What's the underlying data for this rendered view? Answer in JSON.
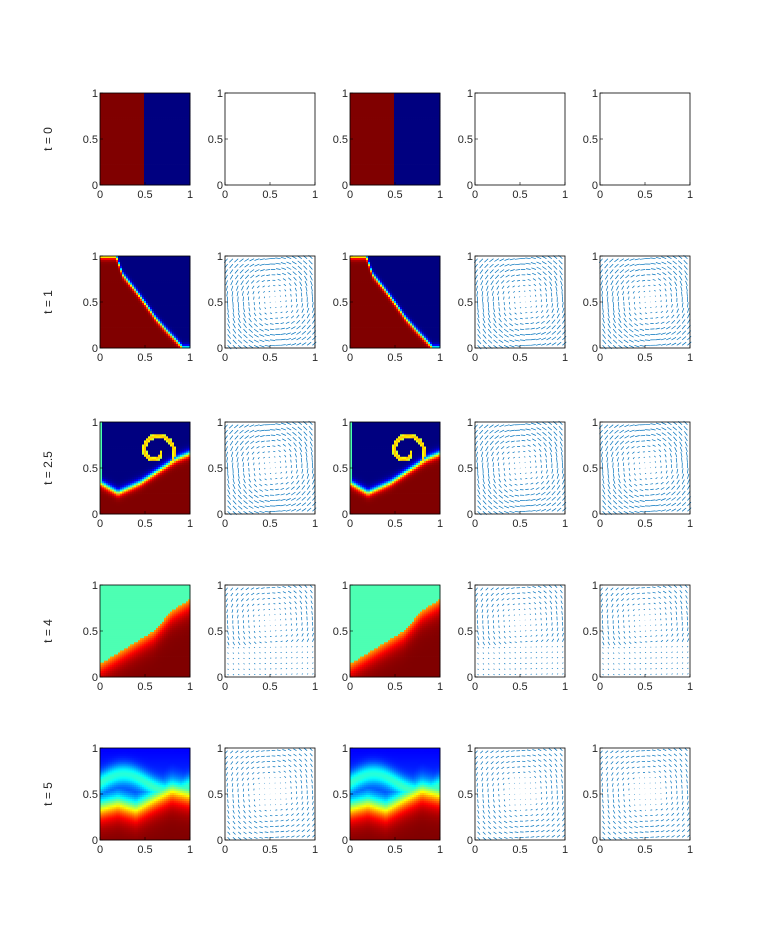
{
  "figure": {
    "rows": [
      "t = 0",
      "t = 1",
      "t = 2.5",
      "t = 4",
      "t = 5"
    ],
    "columns": [
      "scalar-field",
      "velocity-field",
      "scalar-field",
      "velocity-field",
      "velocity-field"
    ]
  },
  "chart_data": {
    "type": "grid-of-subplots",
    "axes": {
      "xlim": [
        0,
        1
      ],
      "ylim": [
        0,
        1
      ],
      "xticks": [
        "0",
        "0.5",
        "1"
      ],
      "yticks": [
        "0",
        "0.5",
        "1"
      ]
    },
    "colormap": "jet",
    "colors": {
      "quiver": "#0072BD",
      "axis": "#262626",
      "frame": "#000000"
    },
    "panels": [
      {
        "row": 0,
        "col": 0,
        "kind": "field",
        "t": 0
      },
      {
        "row": 0,
        "col": 1,
        "kind": "quiver",
        "t": 0,
        "empty": true
      },
      {
        "row": 0,
        "col": 2,
        "kind": "field",
        "t": 0
      },
      {
        "row": 0,
        "col": 3,
        "kind": "quiver",
        "t": 0,
        "empty": true
      },
      {
        "row": 0,
        "col": 4,
        "kind": "quiver",
        "t": 0,
        "empty": true
      },
      {
        "row": 1,
        "col": 0,
        "kind": "field",
        "t": 1
      },
      {
        "row": 1,
        "col": 1,
        "kind": "quiver",
        "t": 1
      },
      {
        "row": 1,
        "col": 2,
        "kind": "field",
        "t": 1
      },
      {
        "row": 1,
        "col": 3,
        "kind": "quiver",
        "t": 1
      },
      {
        "row": 1,
        "col": 4,
        "kind": "quiver",
        "t": 1
      },
      {
        "row": 2,
        "col": 0,
        "kind": "field",
        "t": 2.5
      },
      {
        "row": 2,
        "col": 1,
        "kind": "quiver",
        "t": 2.5
      },
      {
        "row": 2,
        "col": 2,
        "kind": "field",
        "t": 2.5
      },
      {
        "row": 2,
        "col": 3,
        "kind": "quiver",
        "t": 2.5
      },
      {
        "row": 2,
        "col": 4,
        "kind": "quiver",
        "t": 2.5
      },
      {
        "row": 3,
        "col": 0,
        "kind": "field",
        "t": 4
      },
      {
        "row": 3,
        "col": 1,
        "kind": "quiver",
        "t": 4
      },
      {
        "row": 3,
        "col": 2,
        "kind": "field",
        "t": 4
      },
      {
        "row": 3,
        "col": 3,
        "kind": "quiver",
        "t": 4
      },
      {
        "row": 3,
        "col": 4,
        "kind": "quiver",
        "t": 4
      },
      {
        "row": 4,
        "col": 0,
        "kind": "field",
        "t": 5
      },
      {
        "row": 4,
        "col": 1,
        "kind": "quiver",
        "t": 5
      },
      {
        "row": 4,
        "col": 2,
        "kind": "field",
        "t": 5
      },
      {
        "row": 4,
        "col": 3,
        "kind": "quiver",
        "t": 5
      },
      {
        "row": 4,
        "col": 4,
        "kind": "quiver",
        "t": 5
      }
    ]
  }
}
